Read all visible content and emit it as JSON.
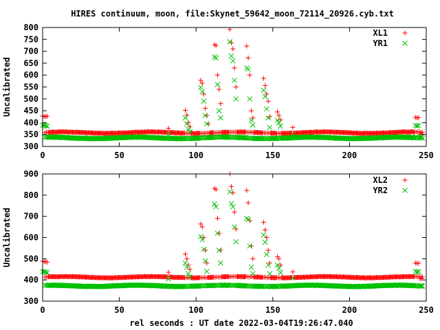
{
  "title": "HIRES continuum, moon, file:Skynet_59642_moon_72114_20926.cyb.txt",
  "colors": {
    "red": "#ff0000",
    "green": "#00c000",
    "axis": "#000000"
  },
  "chart_data": [
    {
      "type": "scatter",
      "ylabel": "Uncalibrated",
      "xlabel": "",
      "xlim": [
        0,
        250
      ],
      "ylim": [
        300,
        800
      ],
      "xticks": [
        0,
        50,
        100,
        150,
        200,
        250
      ],
      "yticks": [
        300,
        350,
        400,
        450,
        500,
        550,
        600,
        650,
        700,
        750,
        800
      ],
      "legend_position": "top-right",
      "series": [
        {
          "name": "XL1",
          "marker": "plus",
          "color": "#ff0000",
          "baseline": 358,
          "points": [
            [
              0,
              428
            ],
            [
              1,
              426
            ],
            [
              2,
              425
            ],
            [
              3,
              427
            ],
            [
              82,
              376
            ],
            [
              93,
              452
            ],
            [
              94,
              432
            ],
            [
              95,
              400
            ],
            [
              96,
              383
            ],
            [
              103,
              578
            ],
            [
              104,
              566
            ],
            [
              105,
              520
            ],
            [
              106,
              460
            ],
            [
              107,
              430
            ],
            [
              108,
              395
            ],
            [
              112,
              728
            ],
            [
              113,
              724
            ],
            [
              114,
              600
            ],
            [
              115,
              540
            ],
            [
              116,
              480
            ],
            [
              122,
              792
            ],
            [
              123,
              736
            ],
            [
              124,
              710
            ],
            [
              125,
              630
            ],
            [
              126,
              550
            ],
            [
              133,
              722
            ],
            [
              134,
              672
            ],
            [
              135,
              600
            ],
            [
              136,
              450
            ],
            [
              137,
              420
            ],
            [
              144,
              586
            ],
            [
              145,
              556
            ],
            [
              146,
              520
            ],
            [
              147,
              490
            ],
            [
              148,
              425
            ],
            [
              153,
              445
            ],
            [
              154,
              430
            ],
            [
              155,
              412
            ],
            [
              163,
              380
            ],
            [
              243,
              422
            ],
            [
              244,
              420
            ],
            [
              245,
              421
            ],
            [
              246,
              350
            ],
            [
              247,
              352
            ]
          ]
        },
        {
          "name": "YR1",
          "marker": "cross",
          "color": "#00c000",
          "baseline": 336,
          "points": [
            [
              0,
              390
            ],
            [
              1,
              388
            ],
            [
              2,
              387
            ],
            [
              3,
              385
            ],
            [
              82,
              350
            ],
            [
              93,
              420
            ],
            [
              94,
              395
            ],
            [
              95,
              372
            ],
            [
              96,
              362
            ],
            [
              103,
              548
            ],
            [
              104,
              530
            ],
            [
              105,
              490
            ],
            [
              106,
              430
            ],
            [
              107,
              395
            ],
            [
              112,
              676
            ],
            [
              113,
              672
            ],
            [
              114,
              560
            ],
            [
              115,
              450
            ],
            [
              116,
              420
            ],
            [
              122,
              740
            ],
            [
              123,
              680
            ],
            [
              124,
              660
            ],
            [
              125,
              578
            ],
            [
              126,
              500
            ],
            [
              133,
              630
            ],
            [
              134,
              625
            ],
            [
              135,
              500
            ],
            [
              136,
              410
            ],
            [
              137,
              390
            ],
            [
              144,
              536
            ],
            [
              145,
              510
            ],
            [
              146,
              458
            ],
            [
              147,
              420
            ],
            [
              148,
              380
            ],
            [
              153,
              410
            ],
            [
              154,
              400
            ],
            [
              155,
              385
            ],
            [
              163,
              350
            ],
            [
              243,
              388
            ],
            [
              244,
              386
            ],
            [
              245,
              388
            ],
            [
              246,
              340
            ],
            [
              247,
              341
            ]
          ]
        }
      ]
    },
    {
      "type": "scatter",
      "ylabel": "Uncalibrated",
      "xlabel": "rel seconds : UT date 2022-03-04T19:26:47.040",
      "xlim": [
        0,
        250
      ],
      "ylim": [
        300,
        900
      ],
      "xticks": [
        0,
        50,
        100,
        150,
        200,
        250
      ],
      "yticks": [
        300,
        400,
        500,
        600,
        700,
        800,
        900
      ],
      "legend_position": "top-right",
      "series": [
        {
          "name": "XL2",
          "marker": "plus",
          "color": "#ff0000",
          "baseline": 413,
          "points": [
            [
              0,
              488
            ],
            [
              1,
              486
            ],
            [
              2,
              485
            ],
            [
              3,
              484
            ],
            [
              82,
              436
            ],
            [
              93,
              522
            ],
            [
              94,
              500
            ],
            [
              95,
              470
            ],
            [
              96,
              450
            ],
            [
              103,
              664
            ],
            [
              104,
              650
            ],
            [
              105,
              600
            ],
            [
              106,
              540
            ],
            [
              107,
              480
            ],
            [
              112,
              832
            ],
            [
              113,
              826
            ],
            [
              114,
              690
            ],
            [
              115,
              620
            ],
            [
              116,
              540
            ],
            [
              122,
              900
            ],
            [
              123,
              840
            ],
            [
              124,
              812
            ],
            [
              125,
              720
            ],
            [
              126,
              640
            ],
            [
              133,
              822
            ],
            [
              134,
              764
            ],
            [
              135,
              680
            ],
            [
              136,
              560
            ],
            [
              137,
              500
            ],
            [
              144,
              672
            ],
            [
              145,
              636
            ],
            [
              146,
              600
            ],
            [
              147,
              540
            ],
            [
              148,
              480
            ],
            [
              153,
              510
            ],
            [
              154,
              500
            ],
            [
              155,
              470
            ],
            [
              163,
              438
            ],
            [
              243,
              480
            ],
            [
              244,
              478
            ],
            [
              245,
              479
            ],
            [
              246,
              405
            ],
            [
              247,
              407
            ]
          ]
        },
        {
          "name": "YR2",
          "marker": "cross",
          "color": "#00c000",
          "baseline": 372,
          "points": [
            [
              0,
              440
            ],
            [
              1,
              438
            ],
            [
              2,
              437
            ],
            [
              3,
              435
            ],
            [
              82,
              405
            ],
            [
              93,
              480
            ],
            [
              94,
              460
            ],
            [
              95,
              430
            ],
            [
              96,
              415
            ],
            [
              103,
              605
            ],
            [
              104,
              590
            ],
            [
              105,
              545
            ],
            [
              106,
              490
            ],
            [
              107,
              440
            ],
            [
              112,
              758
            ],
            [
              113,
              745
            ],
            [
              114,
              620
            ],
            [
              115,
              540
            ],
            [
              116,
              480
            ],
            [
              122,
              815
            ],
            [
              123,
              760
            ],
            [
              124,
              745
            ],
            [
              125,
              650
            ],
            [
              126,
              580
            ],
            [
              133,
              690
            ],
            [
              134,
              685
            ],
            [
              135,
              560
            ],
            [
              136,
              460
            ],
            [
              137,
              430
            ],
            [
              144,
              612
            ],
            [
              145,
              578
            ],
            [
              146,
              520
            ],
            [
              147,
              470
            ],
            [
              148,
              430
            ],
            [
              153,
              470
            ],
            [
              154,
              455
            ],
            [
              155,
              435
            ],
            [
              163,
              410
            ],
            [
              243,
              440
            ],
            [
              244,
              437
            ],
            [
              245,
              439
            ],
            [
              246,
              370
            ],
            [
              247,
              371
            ]
          ]
        }
      ]
    }
  ]
}
